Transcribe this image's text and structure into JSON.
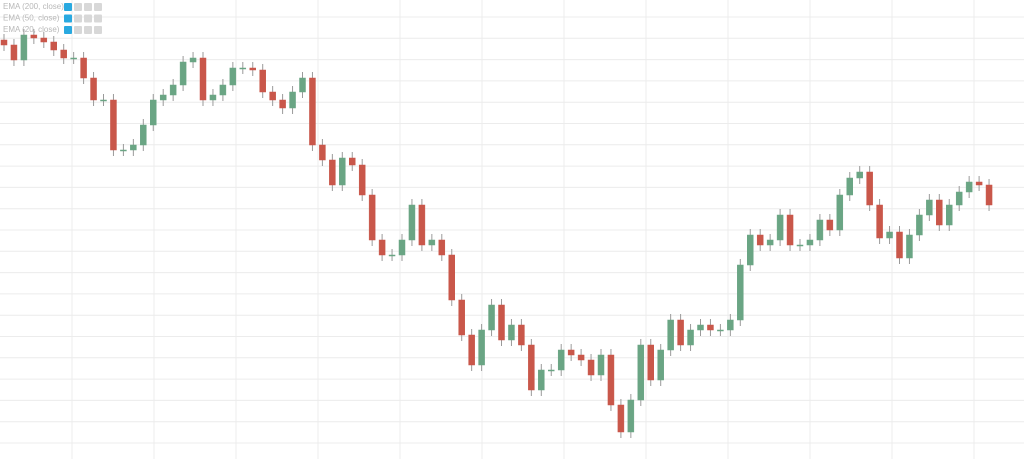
{
  "chart_data": {
    "type": "candlestick",
    "indicators": [
      "EMA (200, close)",
      "EMA (50, close)",
      "EMA (20, close)"
    ],
    "up_color": "#6aa584",
    "down_color": "#c9574a",
    "grid": true,
    "ylim": [
      0,
      459
    ],
    "open": [
      419,
      414,
      399,
      424,
      421,
      417,
      409,
      401,
      401,
      381,
      359,
      359,
      309,
      309,
      314,
      334,
      359,
      364,
      374,
      397,
      401,
      359,
      364,
      374,
      391,
      391,
      389,
      367,
      359,
      351,
      367,
      381,
      314,
      299,
      274,
      301,
      294,
      264,
      219,
      204,
      204,
      219,
      254,
      214,
      219,
      204,
      159,
      124,
      94,
      129,
      154,
      119,
      134,
      114,
      69,
      89,
      89,
      109,
      104,
      99,
      84,
      104,
      54,
      27,
      59,
      114,
      79,
      109,
      139,
      114,
      129,
      134,
      129,
      129,
      139,
      194,
      224,
      214,
      219,
      244,
      214,
      214,
      219,
      239,
      229,
      264,
      281,
      287,
      254,
      221,
      227,
      201,
      224,
      244,
      259,
      234,
      254,
      267,
      277,
      274
    ],
    "high": [
      425,
      420,
      430,
      430,
      427,
      423,
      415,
      407,
      407,
      387,
      365,
      365,
      315,
      320,
      340,
      365,
      370,
      380,
      403,
      407,
      407,
      370,
      380,
      397,
      397,
      397,
      395,
      373,
      365,
      373,
      387,
      387,
      320,
      305,
      307,
      307,
      300,
      270,
      225,
      210,
      225,
      260,
      260,
      225,
      225,
      210,
      165,
      130,
      135,
      160,
      160,
      140,
      140,
      120,
      95,
      95,
      115,
      115,
      110,
      105,
      110,
      110,
      60,
      65,
      120,
      120,
      115,
      145,
      145,
      135,
      140,
      140,
      135,
      145,
      200,
      230,
      230,
      225,
      250,
      250,
      220,
      225,
      245,
      245,
      270,
      287,
      293,
      293,
      260,
      233,
      233,
      230,
      250,
      265,
      265,
      260,
      273,
      283,
      283,
      280
    ],
    "low": [
      408,
      393,
      393,
      415,
      411,
      403,
      395,
      395,
      375,
      353,
      353,
      303,
      303,
      303,
      308,
      328,
      353,
      358,
      368,
      391,
      353,
      353,
      358,
      368,
      385,
      383,
      361,
      353,
      345,
      345,
      361,
      308,
      293,
      268,
      268,
      288,
      258,
      213,
      198,
      198,
      198,
      213,
      208,
      208,
      198,
      153,
      118,
      88,
      88,
      123,
      113,
      113,
      108,
      63,
      63,
      83,
      83,
      98,
      93,
      78,
      78,
      48,
      21,
      21,
      53,
      73,
      73,
      103,
      108,
      108,
      123,
      123,
      123,
      123,
      133,
      188,
      208,
      208,
      213,
      208,
      208,
      208,
      213,
      223,
      223,
      258,
      275,
      248,
      215,
      215,
      195,
      195,
      218,
      238,
      228,
      228,
      248,
      261,
      268,
      248
    ],
    "close": [
      414,
      399,
      424,
      421,
      417,
      409,
      401,
      401,
      381,
      359,
      359,
      309,
      309,
      314,
      334,
      359,
      364,
      374,
      397,
      401,
      359,
      364,
      374,
      391,
      391,
      389,
      367,
      359,
      351,
      367,
      381,
      314,
      299,
      274,
      301,
      294,
      264,
      219,
      204,
      204,
      219,
      254,
      214,
      219,
      204,
      159,
      124,
      94,
      129,
      154,
      119,
      134,
      114,
      69,
      89,
      89,
      109,
      104,
      99,
      84,
      104,
      54,
      27,
      59,
      114,
      79,
      109,
      139,
      114,
      129,
      134,
      129,
      129,
      139,
      194,
      224,
      214,
      219,
      244,
      214,
      214,
      219,
      239,
      229,
      264,
      281,
      287,
      254,
      221,
      227,
      201,
      224,
      244,
      259,
      234,
      254,
      267,
      277,
      274,
      254
    ]
  }
}
